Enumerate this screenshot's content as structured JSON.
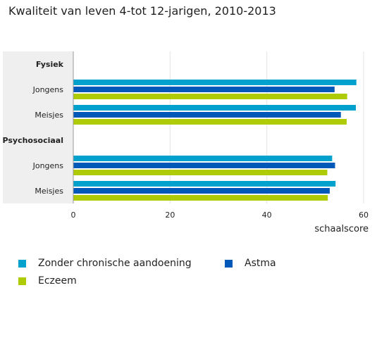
{
  "title": "Kwaliteit van leven 4-tot 12-jarigen, 2010-2013",
  "chart_data": {
    "type": "bar",
    "orientation": "horizontal",
    "title": "Kwaliteit van leven 4-tot 12-jarigen, 2010-2013",
    "xlabel": "schaalscore",
    "ylabel": "",
    "xlim": [
      0,
      60
    ],
    "xticks": [
      0,
      20,
      40,
      60
    ],
    "grid": true,
    "legend_position": "bottom",
    "rows": [
      {
        "label": "Fysiek",
        "kind": "group"
      },
      {
        "label": "Jongens",
        "kind": "category",
        "group": "Fysiek"
      },
      {
        "label": "Meisjes",
        "kind": "category",
        "group": "Fysiek"
      },
      {
        "label": "Psychosociaal",
        "kind": "group"
      },
      {
        "label": "Jongens",
        "kind": "category",
        "group": "Psychosociaal"
      },
      {
        "label": "Meisjes",
        "kind": "category",
        "group": "Psychosociaal"
      }
    ],
    "series": [
      {
        "name": "Zonder chronische aandoening",
        "color": "#00a1cd",
        "values": [
          null,
          58.5,
          58.4,
          null,
          53.5,
          54.2
        ]
      },
      {
        "name": "Astma",
        "color": "#0058b8",
        "values": [
          null,
          54.0,
          55.3,
          null,
          54.1,
          53.0
        ]
      },
      {
        "name": "Eczeem",
        "color": "#afcb05",
        "values": [
          null,
          56.6,
          56.5,
          null,
          52.5,
          52.6
        ]
      }
    ]
  }
}
